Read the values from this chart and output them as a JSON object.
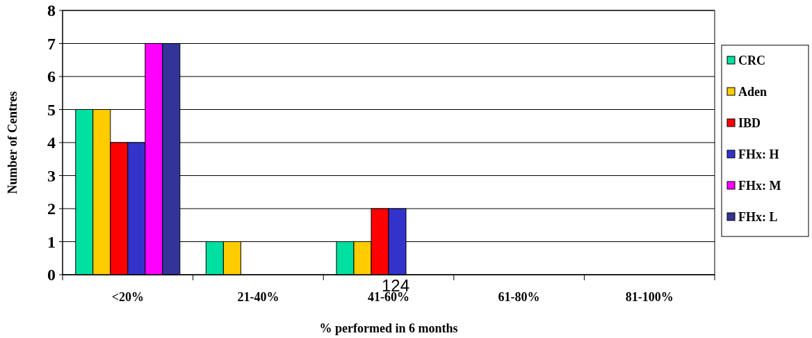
{
  "chart_data": {
    "type": "bar",
    "xlabel": "% performed in 6 months",
    "ylabel": "Number of Centres",
    "categories": [
      "<20%",
      "21-40%",
      "41-60%",
      "61-80%",
      "81-100%"
    ],
    "series": [
      {
        "name": "CRC",
        "color": "#00e0a0",
        "values": [
          5,
          1,
          1,
          0,
          0
        ]
      },
      {
        "name": "Aden",
        "color": "#ffcc00",
        "values": [
          5,
          1,
          1,
          0,
          0
        ]
      },
      {
        "name": "IBD",
        "color": "#ff0000",
        "values": [
          4,
          0,
          2,
          0,
          0
        ]
      },
      {
        "name": "FHx: H",
        "color": "#3333cc",
        "values": [
          4,
          0,
          2,
          0,
          0
        ]
      },
      {
        "name": "FHx: M",
        "color": "#ff00ff",
        "values": [
          7,
          0,
          0,
          0,
          0
        ]
      },
      {
        "name": "FHx: L",
        "color": "#333399",
        "values": [
          7,
          0,
          0,
          0,
          0
        ]
      }
    ],
    "ylim": [
      0,
      8
    ],
    "yticks": [
      0,
      1,
      2,
      3,
      4,
      5,
      6,
      7,
      8
    ],
    "grid": "y",
    "legend": "right",
    "annotations": [
      "124"
    ]
  }
}
